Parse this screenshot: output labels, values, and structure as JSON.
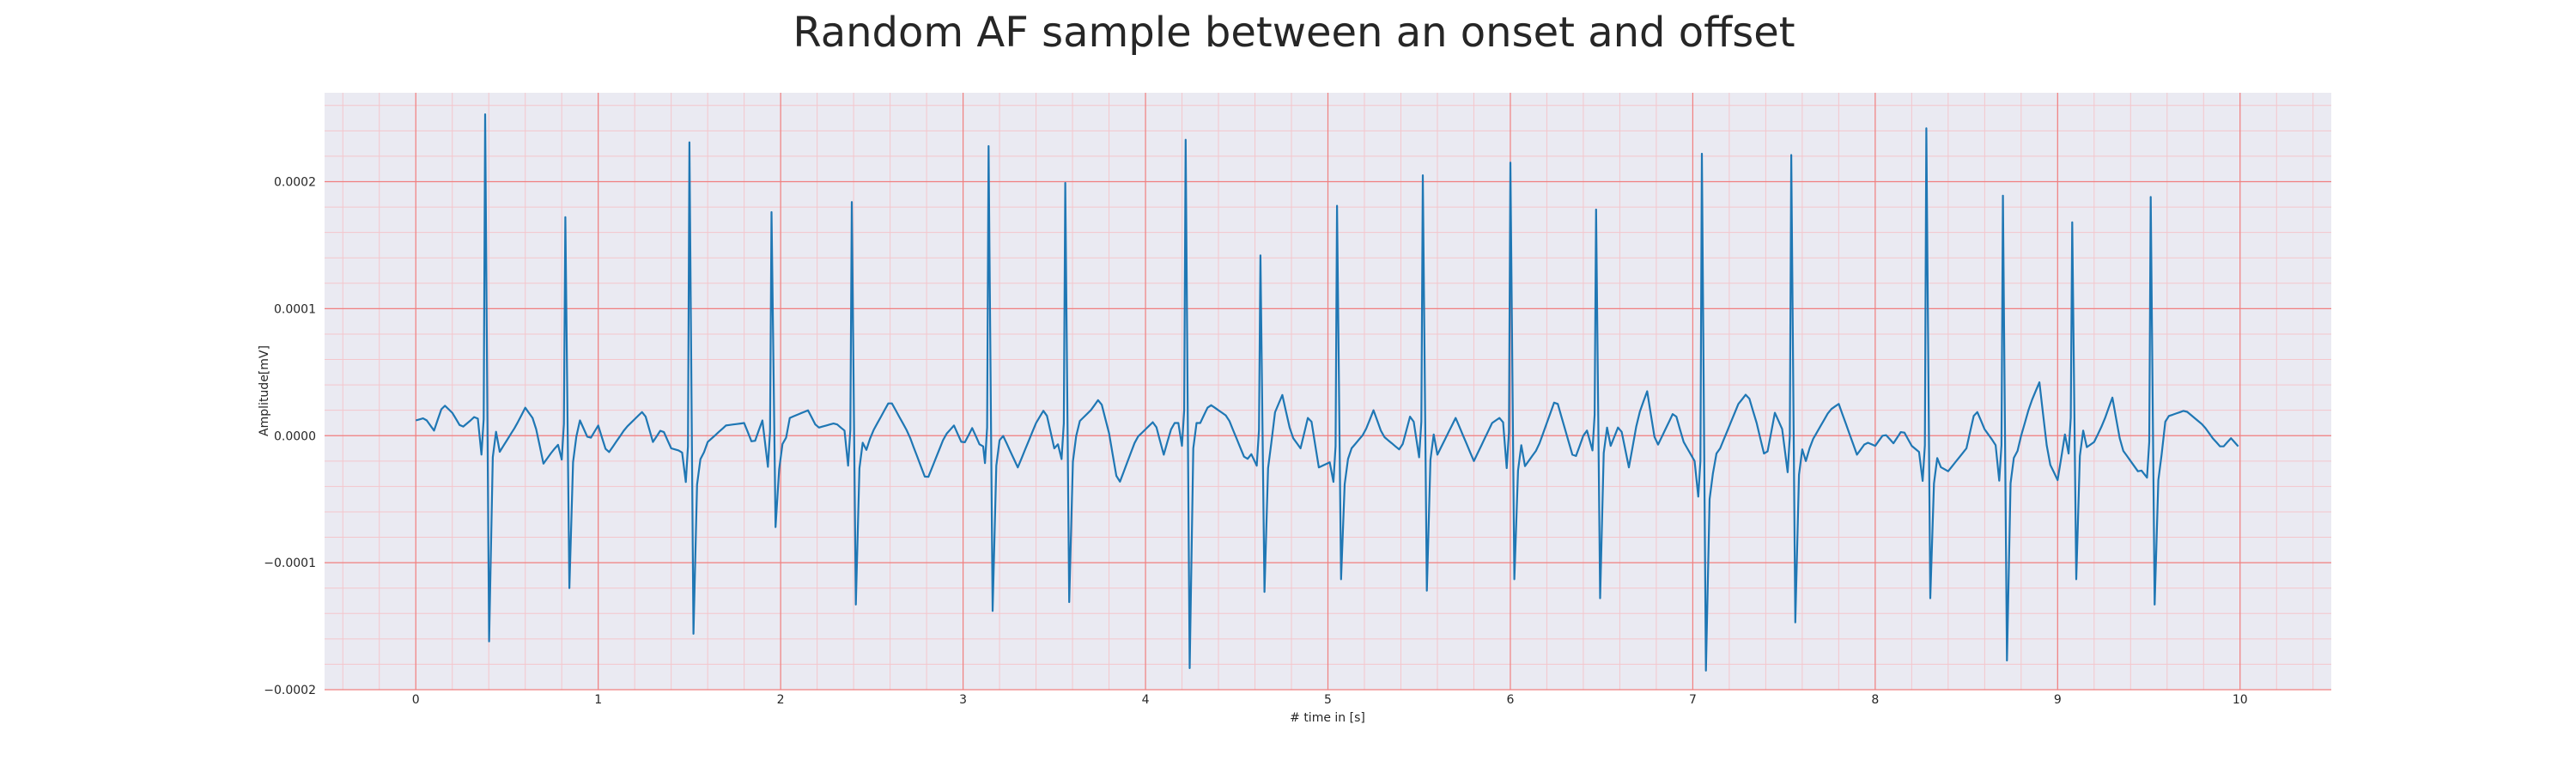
{
  "chart_data": {
    "type": "line",
    "title": "Random AF sample between an onset and offset",
    "xlabel": "# time in [s]",
    "ylabel": "Amplitude[mV]",
    "xlim": [
      -0.5,
      10.5
    ],
    "ylim": [
      -0.0002,
      0.00027
    ],
    "x_ticks": [
      0,
      1,
      2,
      3,
      4,
      5,
      6,
      7,
      8,
      9,
      10
    ],
    "x_tick_labels": [
      "0",
      "1",
      "2",
      "3",
      "4",
      "5",
      "6",
      "7",
      "8",
      "9",
      "10"
    ],
    "y_ticks": [
      0.0002,
      0.0001,
      0.0,
      -0.0001,
      -0.0002
    ],
    "y_tick_labels": [
      "0.0002",
      "0.0001",
      "0.0000",
      "−0.0001",
      "−0.0002"
    ],
    "grid": true,
    "minor_grid": true,
    "legend": "none",
    "background_color": "#eaeaf2",
    "major_grid_color": "#f08080",
    "minor_grid_color": "#f4c6cc",
    "line_color": "#1f77b4",
    "series": [
      {
        "x_start": 0.0,
        "x_end": 10.0,
        "sample_step": 0.02,
        "baseline": [
          [
            0.0,
            1.2e-05
          ],
          [
            0.05,
            1.4e-05
          ],
          [
            0.1,
            4e-06
          ],
          [
            0.15,
            2.5e-05
          ],
          [
            0.2,
            1.8e-05
          ],
          [
            0.25,
            6e-06
          ],
          [
            0.3,
            1.2e-05
          ],
          [
            0.33,
            1.6e-05
          ],
          [
            0.45,
            -1.5e-05
          ],
          [
            0.55,
            8e-06
          ],
          [
            0.6,
            2.2e-05
          ],
          [
            0.65,
            1.2e-05
          ],
          [
            0.7,
            -2.2e-05
          ],
          [
            0.75,
            -1.2e-05
          ],
          [
            0.9,
            1.2e-05
          ],
          [
            0.95,
            -4e-06
          ],
          [
            1.0,
            8e-06
          ],
          [
            1.05,
            -1.5e-05
          ],
          [
            1.15,
            6e-06
          ],
          [
            1.25,
            2e-05
          ],
          [
            1.3,
            -5e-06
          ],
          [
            1.35,
            6e-06
          ],
          [
            1.4,
            -1e-05
          ],
          [
            1.45,
            -1.2e-05
          ],
          [
            1.55,
            -2.5e-05
          ],
          [
            1.6,
            -5e-06
          ],
          [
            1.7,
            8e-06
          ],
          [
            1.8,
            1e-05
          ],
          [
            1.85,
            -8e-06
          ],
          [
            1.9,
            1.2e-05
          ],
          [
            2.0,
            -2.5e-05
          ],
          [
            2.05,
            1.4e-05
          ],
          [
            2.15,
            2e-05
          ],
          [
            2.2,
            6e-06
          ],
          [
            2.3,
            1e-05
          ],
          [
            2.35,
            4e-06
          ],
          [
            2.45,
            -2e-05
          ],
          [
            2.5,
            2e-06
          ],
          [
            2.6,
            2.8e-05
          ],
          [
            2.7,
            2e-06
          ],
          [
            2.8,
            -3.6e-05
          ],
          [
            2.9,
            0.0
          ],
          [
            2.95,
            8e-06
          ],
          [
            3.0,
            -8e-06
          ],
          [
            3.05,
            6e-06
          ],
          [
            3.1,
            -1e-05
          ],
          [
            3.2,
            6e-06
          ],
          [
            3.3,
            -2.5e-05
          ],
          [
            3.4,
            1e-05
          ],
          [
            3.45,
            2.2e-05
          ],
          [
            3.5,
            -1e-05
          ],
          [
            3.6,
            6e-06
          ],
          [
            3.7,
            2e-05
          ],
          [
            3.75,
            3e-05
          ],
          [
            3.8,
            2e-06
          ],
          [
            3.85,
            -4e-05
          ],
          [
            3.95,
            -2e-06
          ],
          [
            4.05,
            1.2e-05
          ],
          [
            4.1,
            -1.5e-05
          ],
          [
            4.15,
            1e-05
          ],
          [
            4.3,
            1e-05
          ],
          [
            4.35,
            2.5e-05
          ],
          [
            4.45,
            1.5e-05
          ],
          [
            4.55,
            -2e-05
          ],
          [
            4.65,
            -2e-06
          ],
          [
            4.75,
            3.2e-05
          ],
          [
            4.8,
            0.0
          ],
          [
            4.85,
            -1e-05
          ],
          [
            4.9,
            2e-05
          ],
          [
            4.95,
            -2.5e-05
          ],
          [
            5.1,
            -1.5e-05
          ],
          [
            5.2,
            2e-06
          ],
          [
            5.25,
            2e-05
          ],
          [
            5.3,
            0.0
          ],
          [
            5.4,
            -1.2e-05
          ],
          [
            5.45,
            1.5e-05
          ],
          [
            5.6,
            -1.5e-05
          ],
          [
            5.7,
            1.4e-05
          ],
          [
            5.8,
            -2e-05
          ],
          [
            5.9,
            1e-05
          ],
          [
            5.95,
            1.5e-05
          ],
          [
            6.05,
            -3e-05
          ],
          [
            6.15,
            -1e-05
          ],
          [
            6.25,
            3e-05
          ],
          [
            6.35,
            -2e-05
          ],
          [
            6.4,
            0.0
          ],
          [
            6.45,
            1e-05
          ],
          [
            6.55,
            -8e-06
          ],
          [
            6.6,
            1e-05
          ],
          [
            6.65,
            -2.5e-05
          ],
          [
            6.7,
            1.5e-05
          ],
          [
            6.75,
            3.5e-05
          ],
          [
            6.8,
            -1e-05
          ],
          [
            6.9,
            2e-05
          ],
          [
            6.95,
            -5e-06
          ],
          [
            7.05,
            -3e-05
          ],
          [
            7.15,
            -1e-05
          ],
          [
            7.25,
            2.5e-05
          ],
          [
            7.3,
            3.4e-05
          ],
          [
            7.35,
            1e-05
          ],
          [
            7.4,
            -2e-05
          ],
          [
            7.45,
            1.8e-05
          ],
          [
            7.6,
            -3e-05
          ],
          [
            7.65,
            -5e-06
          ],
          [
            7.75,
            2e-05
          ],
          [
            7.8,
            2.5e-05
          ],
          [
            7.85,
            5e-06
          ],
          [
            7.9,
            -1.5e-05
          ],
          [
            7.95,
            -5e-06
          ],
          [
            8.0,
            -8e-06
          ],
          [
            8.05,
            2e-06
          ],
          [
            8.1,
            -6e-06
          ],
          [
            8.15,
            5e-06
          ],
          [
            8.2,
            -8e-06
          ],
          [
            8.3,
            -2e-05
          ],
          [
            8.4,
            -2.8e-05
          ],
          [
            8.5,
            -1e-05
          ],
          [
            8.55,
            2.2e-05
          ],
          [
            8.6,
            5e-06
          ],
          [
            8.65,
            -5e-06
          ],
          [
            8.75,
            -3e-05
          ],
          [
            8.8,
            0.0
          ],
          [
            8.85,
            2.5e-05
          ],
          [
            8.9,
            4.2e-05
          ],
          [
            8.95,
            -2e-05
          ],
          [
            9.0,
            -3.5e-05
          ],
          [
            9.05,
            1e-05
          ],
          [
            9.15,
            -1e-05
          ],
          [
            9.2,
            -5e-06
          ],
          [
            9.25,
            1e-05
          ],
          [
            9.3,
            3e-05
          ],
          [
            9.35,
            -1e-05
          ],
          [
            9.45,
            -3e-05
          ],
          [
            9.55,
            -5e-06
          ],
          [
            9.6,
            1.5e-05
          ],
          [
            9.7,
            2e-05
          ],
          [
            9.8,
            8e-06
          ],
          [
            9.85,
            -2e-06
          ],
          [
            9.9,
            -1e-05
          ],
          [
            9.95,
            -2e-06
          ],
          [
            10.0,
            -1e-05
          ]
        ],
        "beats": [
          {
            "t": 0.38,
            "peak": 0.000253,
            "trough": -0.000162
          },
          {
            "t": 0.82,
            "peak": 0.000172,
            "trough": -0.00012
          },
          {
            "t": 1.5,
            "peak": 0.000231,
            "trough": -0.000156
          },
          {
            "t": 1.95,
            "peak": 0.000176,
            "trough": -7.2e-05
          },
          {
            "t": 2.39,
            "peak": 0.000184,
            "trough": -0.000133
          },
          {
            "t": 3.14,
            "peak": 0.000228,
            "trough": -0.000138
          },
          {
            "t": 3.56,
            "peak": 0.000199,
            "trough": -0.000131
          },
          {
            "t": 4.22,
            "peak": 0.000233,
            "trough": -0.000183
          },
          {
            "t": 4.63,
            "peak": 0.000142,
            "trough": -0.000123
          },
          {
            "t": 5.05,
            "peak": 0.000181,
            "trough": -0.000113
          },
          {
            "t": 5.52,
            "peak": 0.000205,
            "trough": -0.000122
          },
          {
            "t": 6.0,
            "peak": 0.000215,
            "trough": -0.000113
          },
          {
            "t": 6.47,
            "peak": 0.000178,
            "trough": -0.000128
          },
          {
            "t": 7.05,
            "peak": 0.000222,
            "trough": -0.000185
          },
          {
            "t": 7.54,
            "peak": 0.000221,
            "trough": -0.000147
          },
          {
            "t": 8.28,
            "peak": 0.000242,
            "trough": -0.000128
          },
          {
            "t": 8.7,
            "peak": 0.000189,
            "trough": -0.000177
          },
          {
            "t": 9.08,
            "peak": 0.000168,
            "trough": -0.000113
          },
          {
            "t": 9.51,
            "peak": 0.000188,
            "trough": -0.000133
          }
        ]
      }
    ]
  }
}
